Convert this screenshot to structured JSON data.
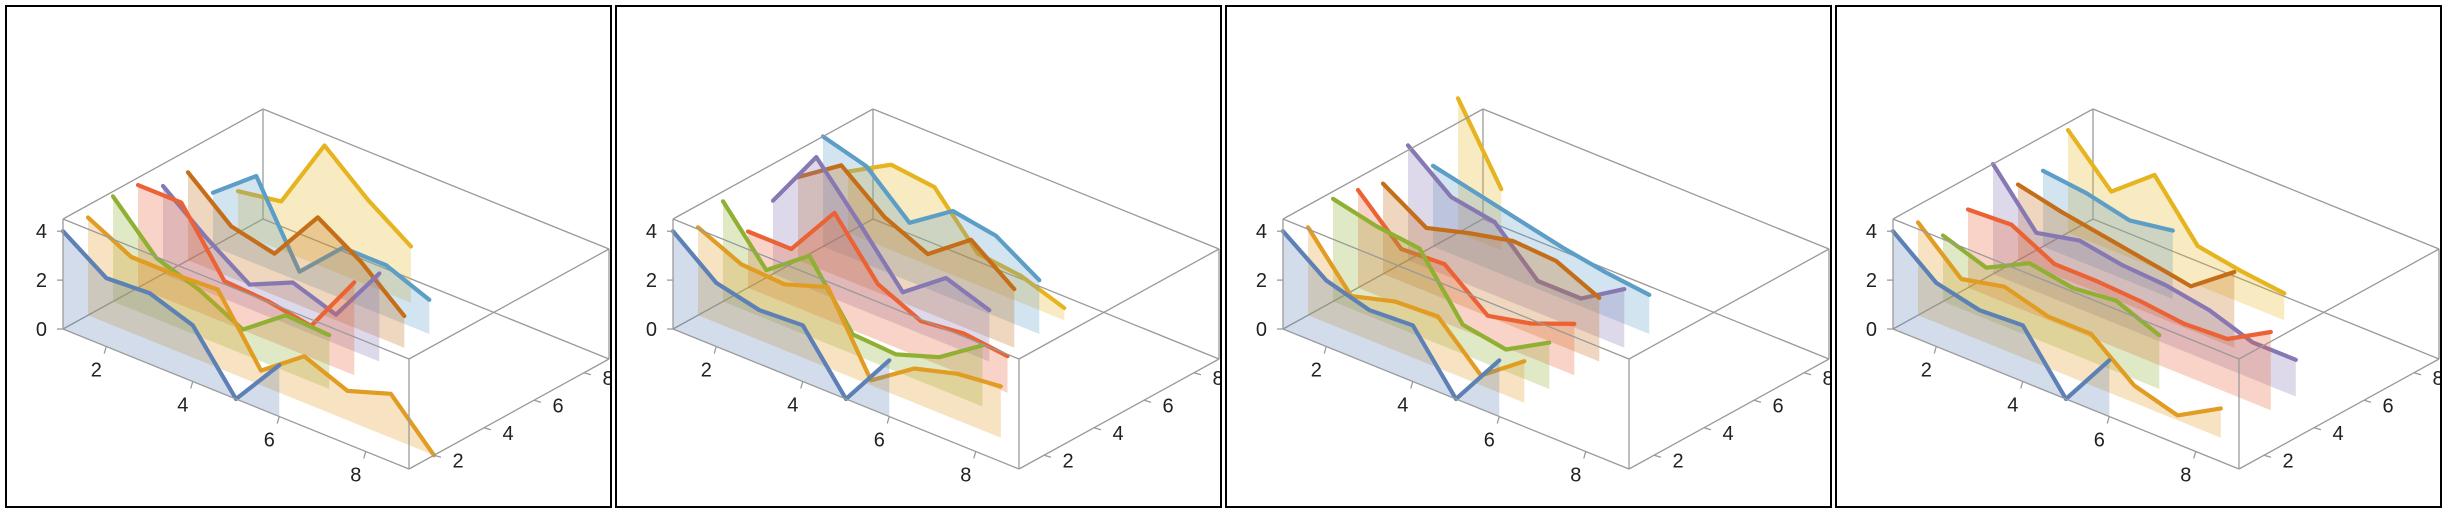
{
  "chart_data": [
    {
      "type": "line",
      "x_ticks": [
        "2",
        "4",
        "6",
        "8"
      ],
      "y_ticks": [
        "2",
        "4",
        "6",
        "8"
      ],
      "z_ticks": [
        "0",
        "2",
        "4"
      ],
      "xlim": [
        1,
        9
      ],
      "ylim": [
        1,
        9
      ],
      "zlim": [
        0,
        4.5
      ],
      "filling": "axis",
      "series": [
        {
          "color": "#5e81b5",
          "y": 1,
          "x": [
            1,
            2,
            3,
            4,
            5,
            6
          ],
          "z": [
            4,
            2.8,
            2.9,
            2.3,
            0,
            2.1
          ]
        },
        {
          "color": "#e19c24",
          "y": 2,
          "x": [
            1,
            2,
            3,
            4,
            5,
            6,
            7,
            8,
            9
          ],
          "z": [
            4,
            3.1,
            3.1,
            3.2,
            0.6,
            1.9,
            1.2,
            1.8,
            0
          ]
        },
        {
          "color": "#8fb032",
          "y": 3,
          "x": [
            1,
            2,
            3,
            4,
            5,
            6
          ],
          "z": [
            4.3,
            2.5,
            1.9,
            1,
            2.3,
            2.2
          ]
        },
        {
          "color": "#eb6235",
          "y": 4,
          "x": [
            1,
            2,
            3,
            4,
            5,
            6
          ],
          "z": [
            4.2,
            4.2,
            1.7,
            1.6,
            1.3,
            3.8
          ]
        },
        {
          "color": "#8778b3",
          "y": 5,
          "x": [
            1,
            2,
            3,
            4,
            5,
            6
          ],
          "z": [
            3.6,
            2.2,
            1,
            1.8,
            1.2,
            3.6
          ]
        },
        {
          "color": "#c56e1a",
          "y": 6,
          "x": [
            1,
            2,
            3,
            4,
            5,
            6
          ],
          "z": [
            3.6,
            2.1,
            1.7,
            3.9,
            2.8,
            1.3
          ]
        },
        {
          "color": "#5d9ec7",
          "y": 7,
          "x": [
            1,
            2,
            3,
            4,
            5,
            6
          ],
          "z": [
            2.2,
            3.6,
            0.4,
            2.1,
            2.1,
            1.4
          ]
        },
        {
          "color": "#e5b41f",
          "y": 8,
          "x": [
            1,
            2,
            3,
            4,
            5
          ],
          "z": [
            1.7,
            2,
            5,
            3.5,
            2.3
          ]
        }
      ]
    },
    {
      "type": "line",
      "x_ticks": [
        "2",
        "4",
        "6",
        "8"
      ],
      "y_ticks": [
        "2",
        "4",
        "6",
        "8"
      ],
      "z_ticks": [
        "0",
        "2",
        "4"
      ],
      "xlim": [
        1,
        9
      ],
      "ylim": [
        1,
        9
      ],
      "zlim": [
        0,
        4.5
      ],
      "filling": "axis",
      "series": [
        {
          "color": "#5e81b5",
          "y": 1,
          "x": [
            1,
            2,
            3,
            4,
            5,
            6
          ],
          "z": [
            4,
            2.6,
            2.2,
            2.3,
            0,
            2.3
          ]
        },
        {
          "color": "#e19c24",
          "y": 2,
          "x": [
            1,
            2,
            3,
            4,
            5,
            6,
            7,
            8
          ],
          "z": [
            3.6,
            2.8,
            2.7,
            3.3,
            0.2,
            1.4,
            1.9,
            2.1
          ]
        },
        {
          "color": "#8fb032",
          "y": 3,
          "x": [
            1,
            2,
            3,
            4,
            5,
            6,
            7
          ],
          "z": [
            4.1,
            2,
            3.3,
            0.8,
            0.7,
            1.3,
            2.5
          ]
        },
        {
          "color": "#eb6235",
          "y": 4,
          "x": [
            1,
            2,
            3,
            4,
            5,
            6,
            7
          ],
          "z": [
            2.3,
            2.3,
            4.5,
            2.3,
            1.5,
            1.7,
            1.5
          ]
        },
        {
          "color": "#8778b3",
          "y": 5,
          "x": [
            1,
            2,
            3,
            4,
            5,
            6
          ],
          "z": [
            3,
            5.5,
            3.5,
            1.4,
            2.7,
            2.1
          ]
        },
        {
          "color": "#c56e1a",
          "y": 6,
          "x": [
            1,
            2,
            3,
            4,
            5,
            6
          ],
          "z": [
            3.4,
            4.6,
            3.2,
            2.4,
            3.7,
            2.4
          ]
        },
        {
          "color": "#5d9ec7",
          "y": 7,
          "x": [
            1,
            2,
            3,
            4,
            5,
            6
          ],
          "z": [
            4.5,
            4,
            2.4,
            3.6,
            3.3,
            2.2
          ]
        },
        {
          "color": "#e5b41f",
          "y": 8,
          "x": [
            1,
            2,
            3,
            4,
            5,
            6
          ],
          "z": [
            2.5,
            3.5,
            3.3,
            1.3,
            1.1,
            0.5
          ]
        }
      ]
    },
    {
      "type": "line",
      "x_ticks": [
        "2",
        "4",
        "6",
        "8"
      ],
      "y_ticks": [
        "2",
        "4",
        "6",
        "8"
      ],
      "z_ticks": [
        "0",
        "2",
        "4"
      ],
      "xlim": [
        1,
        9
      ],
      "ylim": [
        1,
        9
      ],
      "zlim": [
        0,
        4.5
      ],
      "filling": "axis",
      "series": [
        {
          "color": "#5e81b5",
          "y": 1,
          "x": [
            1,
            2,
            3,
            4,
            5,
            6
          ],
          "z": [
            4,
            2.7,
            2.2,
            2.3,
            0,
            2.3
          ]
        },
        {
          "color": "#e19c24",
          "y": 2,
          "x": [
            1,
            2,
            3,
            4,
            5,
            6
          ],
          "z": [
            3.6,
            1.5,
            2,
            2.1,
            0.4,
            1.7
          ]
        },
        {
          "color": "#8fb032",
          "y": 3,
          "x": [
            1,
            2,
            3,
            4,
            5,
            6
          ],
          "z": [
            4.2,
            3.8,
            3.6,
            1.2,
            0.9,
            1.9
          ]
        },
        {
          "color": "#eb6235",
          "y": 4,
          "x": [
            1,
            2,
            3,
            4,
            5,
            6
          ],
          "z": [
            4,
            2.3,
            2.4,
            1,
            1.4,
            2.1
          ]
        },
        {
          "color": "#c56e1a",
          "y": 5,
          "x": [
            1,
            2,
            3,
            4,
            5,
            6
          ],
          "z": [
            3.7,
            2.6,
            3.1,
            3.5,
            3.4,
            2.6
          ]
        },
        {
          "color": "#8778b3",
          "y": 6,
          "x": [
            1,
            2,
            3,
            4,
            5,
            6
          ],
          "z": [
            4.7,
            3.3,
            3,
            1.3,
            1.3,
            2.4
          ]
        },
        {
          "color": "#5d9ec7",
          "y": 7,
          "x": [
            1,
            2,
            3,
            4,
            5,
            6
          ],
          "z": [
            3.3,
            2.9,
            2.5,
            2.1,
            1.8,
            1.6
          ]
        },
        {
          "color": "#e5b41f",
          "y": 8,
          "x": [
            1,
            2
          ],
          "z": [
            5.5,
            2.5
          ]
        }
      ]
    },
    {
      "type": "line",
      "x_ticks": [
        "2",
        "4",
        "6",
        "8"
      ],
      "y_ticks": [
        "2",
        "4",
        "6",
        "8"
      ],
      "z_ticks": [
        "0",
        "2",
        "4"
      ],
      "xlim": [
        1,
        9
      ],
      "ylim": [
        1,
        9
      ],
      "zlim": [
        0,
        4.5
      ],
      "filling": "axis",
      "series": [
        {
          "color": "#5e81b5",
          "y": 1,
          "x": [
            1,
            2,
            3,
            4,
            5,
            6
          ],
          "z": [
            4,
            2.6,
            2.2,
            2.3,
            0,
            2.3
          ]
        },
        {
          "color": "#e19c24",
          "y": 2,
          "x": [
            1,
            2,
            3,
            4,
            5,
            6,
            7,
            8
          ],
          "z": [
            3.8,
            2.2,
            2.6,
            2.1,
            2.1,
            0.7,
            0.2,
            1.2
          ]
        },
        {
          "color": "#8fb032",
          "y": 3,
          "x": [
            1,
            2,
            3,
            4,
            5,
            6
          ],
          "z": [
            2.7,
            2.1,
            3,
            2.7,
            2.9,
            2.2
          ]
        },
        {
          "color": "#eb6235",
          "y": 4,
          "x": [
            1,
            2,
            3,
            4,
            5,
            6,
            7,
            8
          ],
          "z": [
            3.2,
            3.3,
            2.4,
            2.4,
            2.3,
            2.1,
            2.2,
            3.2
          ]
        },
        {
          "color": "#8778b3",
          "y": 5,
          "x": [
            1,
            2,
            3,
            4,
            5,
            6,
            7,
            8
          ],
          "z": [
            4.5,
            2.4,
            2.8,
            2.5,
            2.4,
            2.1,
            1.5,
            1.5
          ]
        },
        {
          "color": "#c56e1a",
          "y": 6,
          "x": [
            1,
            2,
            3,
            4,
            5,
            6
          ],
          "z": [
            3.1,
            2.7,
            2.4,
            2.1,
            1.8,
            3.1
          ]
        },
        {
          "color": "#5d9ec7",
          "y": 7,
          "x": [
            1,
            2,
            3,
            4
          ],
          "z": [
            3.1,
            2.9,
            2.5,
            2.8
          ]
        },
        {
          "color": "#e5b41f",
          "y": 8,
          "x": [
            1,
            2,
            3,
            4,
            5,
            6
          ],
          "z": [
            4.2,
            2.4,
            3.8,
            1.6,
            1.3,
            1.1
          ]
        }
      ]
    }
  ]
}
